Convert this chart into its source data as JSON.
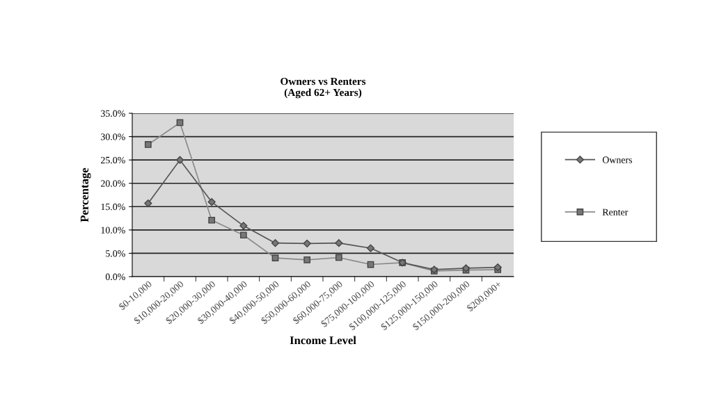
{
  "chart_data": {
    "type": "line",
    "title": "Owners vs Renters\n(Aged 62+ Years)",
    "xlabel": "Income Level",
    "ylabel": "Percentage",
    "categories": [
      "$0-10,000",
      "$10,000-20,000",
      "$20,000-30,000",
      "$30,000-40,000",
      "$40,000-50,000",
      "$50,000-60,000",
      "$60,000-75,000",
      "$75,000-100,000",
      "$100,000-125,000",
      "$125,000-150,000",
      "$150,000-200,000",
      "$200,000+"
    ],
    "series": [
      {
        "name": "Owners",
        "color": "#555555",
        "marker": "diamond",
        "values": [
          15.7,
          25.0,
          16.0,
          10.9,
          7.2,
          7.1,
          7.2,
          6.1,
          3.0,
          1.5,
          1.8,
          2.0
        ]
      },
      {
        "name": "Renter",
        "color": "#8a8a8a",
        "marker": "square",
        "values": [
          28.3,
          33.0,
          12.1,
          8.9,
          4.0,
          3.6,
          4.1,
          2.6,
          3.0,
          1.2,
          1.4,
          1.5
        ]
      }
    ],
    "ylim": [
      0,
      35
    ],
    "yticks": [
      {
        "value": 0,
        "label": "0.0%"
      },
      {
        "value": 5,
        "label": "5.0%"
      },
      {
        "value": 10,
        "label": "10.0%"
      },
      {
        "value": 15,
        "label": "15.0%"
      },
      {
        "value": 20,
        "label": "20.0%"
      },
      {
        "value": 25,
        "label": "25.0%"
      },
      {
        "value": 30,
        "label": "30.0%"
      },
      {
        "value": 35,
        "label": "35.0%"
      }
    ],
    "grid": "y",
    "legend": "right"
  }
}
